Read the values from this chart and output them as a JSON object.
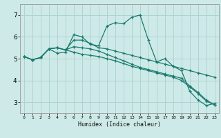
{
  "xlabel": "Humidex (Indice chaleur)",
  "bg_color": "#ceeae8",
  "grid_color": "#aed4d1",
  "line_color": "#1a7a6e",
  "xmin": -0.5,
  "xmax": 23.5,
  "ymin": 2.5,
  "ymax": 7.5,
  "yticks": [
    3,
    4,
    5,
    6,
    7
  ],
  "xticks": [
    0,
    1,
    2,
    3,
    4,
    5,
    6,
    7,
    8,
    9,
    10,
    11,
    12,
    13,
    14,
    15,
    16,
    17,
    18,
    19,
    20,
    21,
    22,
    23
  ],
  "lines": [
    {
      "x": [
        0,
        1,
        2,
        3,
        4,
        5,
        6,
        7,
        8,
        9,
        10,
        11,
        12,
        13,
        14,
        15,
        16,
        17,
        18,
        19,
        20,
        21,
        22,
        23
      ],
      "y": [
        5.1,
        4.95,
        5.05,
        5.45,
        5.25,
        5.3,
        6.1,
        6.0,
        5.65,
        5.6,
        6.5,
        6.65,
        6.6,
        6.9,
        7.0,
        5.85,
        4.85,
        5.0,
        4.65,
        4.45,
        3.5,
        3.1,
        2.85,
        2.95
      ]
    },
    {
      "x": [
        0,
        1,
        2,
        3,
        4,
        5,
        6,
        7,
        8,
        9,
        10,
        11,
        12,
        13,
        14,
        15,
        16,
        17,
        18,
        19,
        20,
        21,
        22,
        23
      ],
      "y": [
        5.1,
        4.95,
        5.05,
        5.45,
        5.5,
        5.4,
        5.85,
        5.85,
        5.7,
        5.5,
        5.45,
        5.35,
        5.25,
        5.15,
        5.05,
        4.95,
        4.85,
        4.75,
        4.65,
        4.55,
        4.45,
        4.35,
        4.25,
        4.15
      ]
    },
    {
      "x": [
        0,
        1,
        2,
        3,
        4,
        5,
        6,
        7,
        8,
        9,
        10,
        11,
        12,
        13,
        14,
        15,
        16,
        17,
        18,
        19,
        20,
        21,
        22,
        23
      ],
      "y": [
        5.1,
        4.95,
        5.05,
        5.45,
        5.5,
        5.4,
        5.55,
        5.5,
        5.45,
        5.35,
        5.2,
        5.05,
        4.9,
        4.75,
        4.6,
        4.5,
        4.4,
        4.3,
        4.2,
        4.1,
        3.75,
        3.45,
        3.1,
        2.88
      ]
    },
    {
      "x": [
        0,
        1,
        2,
        3,
        4,
        5,
        6,
        7,
        8,
        9,
        10,
        11,
        12,
        13,
        14,
        15,
        16,
        17,
        18,
        19,
        20,
        21,
        22,
        23
      ],
      "y": [
        5.1,
        4.95,
        5.05,
        5.45,
        5.5,
        5.4,
        5.3,
        5.2,
        5.15,
        5.1,
        5.0,
        4.9,
        4.78,
        4.65,
        4.55,
        4.45,
        4.35,
        4.25,
        4.15,
        4.0,
        3.7,
        3.4,
        3.05,
        2.88
      ]
    }
  ]
}
